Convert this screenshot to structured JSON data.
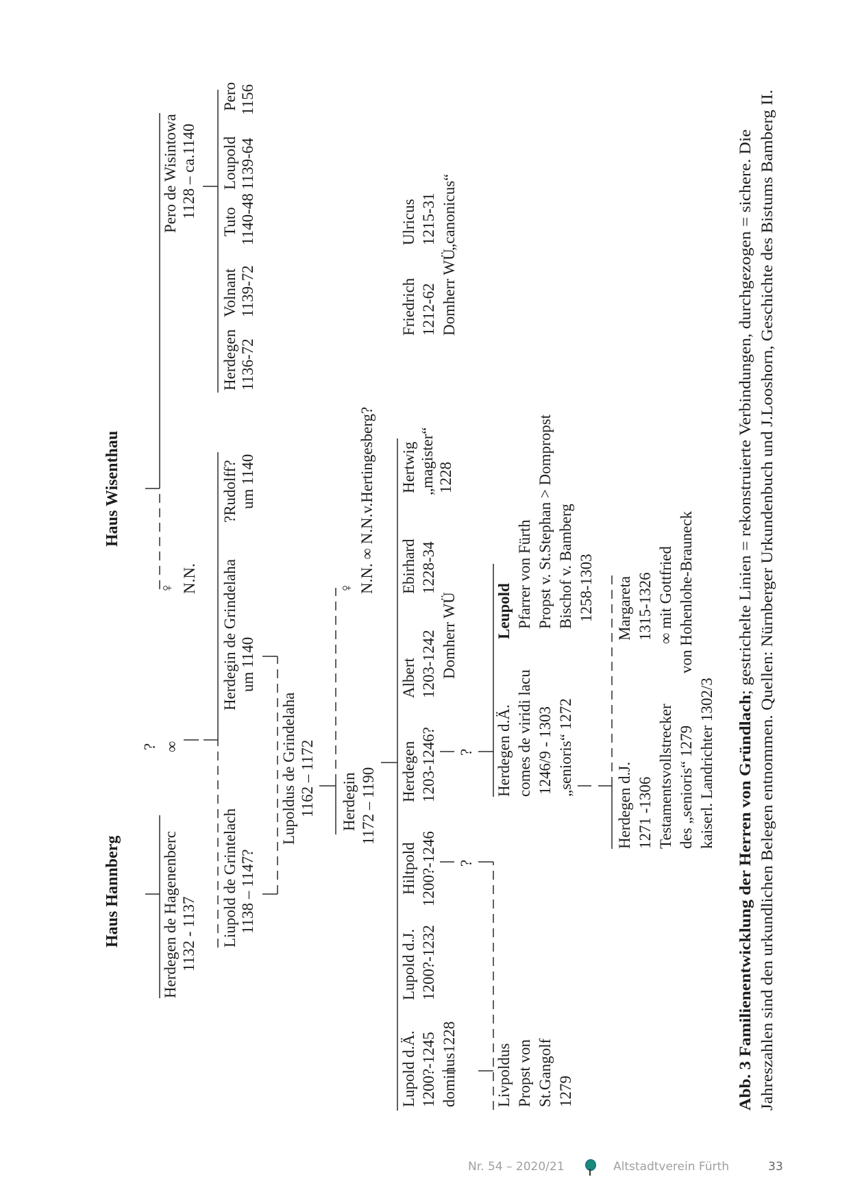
{
  "houses": {
    "hannberg": "Haus Hannberg",
    "wisenthau": "Haus Wisenthau"
  },
  "symbols": {
    "question": "?",
    "marriage": "∞",
    "female": "♀"
  },
  "persons": {
    "herdegen_hagenenberc": [
      "Herdegen de Hagenenberc",
      "1132 - 1137"
    ],
    "nn_female": [
      "N.N."
    ],
    "pero_wisintowa": [
      "Pero de Wisintowa",
      "1128 – ca.1140"
    ],
    "liupold_grintelach": [
      "Liupold de Grintelach",
      "1138 – 1147?"
    ],
    "herdegin_grindelaha": [
      "Herdegin de Grindelaha",
      "um 1140"
    ],
    "rudolff": [
      "?Rudolff?",
      "um 1140"
    ],
    "herdegen_1136": [
      "Herdegen",
      "1136-72"
    ],
    "volnant": [
      "Volnant",
      "1139-72"
    ],
    "tuto": [
      "Tuto",
      "1140-48"
    ],
    "loupold": [
      "Loupold",
      "1139-64"
    ],
    "pero": [
      "Pero",
      "1156"
    ],
    "lupoldus_grindelaha": [
      "Lupoldus de Grindelaha",
      "1162 – 1172"
    ],
    "herdegin": [
      "Herdegin",
      "1172 – 1190"
    ],
    "nn_hertingesberg": [
      "N.N. ∞ N.N.v.Hertingesberg?"
    ],
    "lupold_da": [
      "Lupold d.Ä.",
      "1200?-1245",
      "dominus1228"
    ],
    "lupold_dj": [
      "Lupold d.J.",
      "1200?-1232"
    ],
    "hiltpold": [
      "Hiltpold",
      "1200?-1246"
    ],
    "herdegen_1203": [
      "Herdegen",
      "1203-1246?"
    ],
    "albert": [
      "Albert",
      "1203-1242",
      "Domherr WÜ"
    ],
    "ebirhard": [
      "Ebirhard",
      "1228-34"
    ],
    "hertwig": [
      "Hertwig",
      "„magister“",
      "1228"
    ],
    "friedrich": [
      "Friedrich",
      "1212-62",
      "Domherr WÜ"
    ],
    "ulricus": [
      "Ulricus",
      "1215-31",
      "„canonicus“"
    ],
    "livpoldus": [
      "Livpoldus",
      "Propst von",
      "St.Gangolf",
      "1279"
    ],
    "herdegen_da": [
      "Herdegen d.Ä.",
      "comes de viridi lacu",
      "1246/9 - 1303",
      "„senioris“ 1272"
    ],
    "leupold": [
      "Leupold",
      "Pfarrer von Fürth",
      "Propst v. St.Stephan > Dompropst",
      "Bischof v. Bamberg",
      "1258-1303"
    ],
    "herdegen_dj": [
      "Herdegen d.J.",
      "1271 -1306",
      "Testamentsvollstrecker",
      "des „senioris“ 1279",
      "kaiserl. Landrichter 1302/3"
    ],
    "margareta": [
      "Margareta",
      "1315-1326",
      "∞ mit Gottfried",
      "von Hohenlohe-Brauneck"
    ]
  },
  "caption": {
    "bold": "Abb. 3 Familienentwicklung der Herren von Gründlach",
    "line1_rest": "; gestrichelte Linien = rekonstruierte Verbindungen, durchgezogen = sichere. Die",
    "line2": "Jahreszahlen sind den urkundlichen Belegen entnommen. Quellen: Nürnberger Urkundenbuch und J.Looshorn, Geschichte des Bistums Bamberg II."
  },
  "footer": {
    "issue": "Nr. 54 – 2020/21",
    "publisher": "Altstadtverein Fürth",
    "page_number": "33",
    "logo_icon": "tree-icon",
    "logo_color": "#1a8a7a"
  }
}
